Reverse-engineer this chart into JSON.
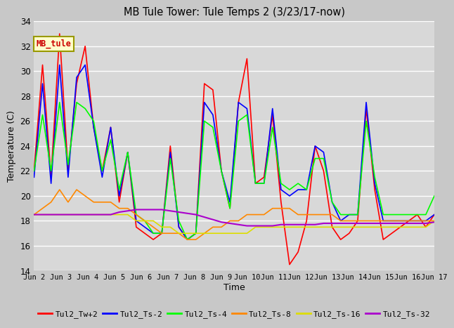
{
  "title": "MB Tule Tower: Tule Temps 2 (3/23/17-now)",
  "xlabel": "Time",
  "ylabel": "Temperature (C)",
  "ylim": [
    14,
    34
  ],
  "yticks": [
    14,
    16,
    18,
    20,
    22,
    24,
    26,
    28,
    30,
    32,
    34
  ],
  "x_labels": [
    "Jun 2",
    "Jun 3",
    "Jun 4",
    "Jun 5",
    "Jun 6",
    "Jun 7",
    "Jun 8",
    "Jun 9",
    "Jun 10",
    "Jun 11",
    "Jun 12",
    "Jun 13",
    "Jun 14",
    "Jun 15",
    "Jun 16",
    "Jun 17"
  ],
  "background_color": "#d8d8d8",
  "plot_bg_color": "#d8d8d8",
  "fig_bg_color": "#c8c8c8",
  "grid_color": "#ffffff",
  "legend_box": {
    "text": "MB_tule",
    "bg": "#ffffcc",
    "edge": "#999900",
    "text_color": "#cc0000"
  },
  "series_order": [
    "Tul2_Tw+2",
    "Tul2_Ts-2",
    "Tul2_Ts-4",
    "Tul2_Ts-8",
    "Tul2_Ts-16",
    "Tul2_Ts-32"
  ],
  "series": {
    "Tul2_Tw+2": {
      "color": "#ff0000",
      "lw": 1.2,
      "y": [
        22.0,
        30.5,
        21.5,
        33.0,
        22.0,
        29.0,
        32.0,
        25.5,
        22.0,
        25.5,
        19.5,
        23.5,
        17.5,
        17.0,
        16.5,
        17.0,
        24.0,
        17.5,
        16.5,
        17.0,
        29.0,
        28.5,
        22.0,
        19.0,
        27.5,
        31.0,
        21.0,
        21.5,
        26.5,
        19.5,
        14.5,
        15.5,
        18.0,
        24.0,
        22.0,
        17.5,
        16.5,
        17.0,
        18.0,
        27.0,
        20.5,
        16.5,
        17.0,
        17.5,
        18.0,
        18.5,
        17.5,
        18.5
      ]
    },
    "Tul2_Ts-2": {
      "color": "#0000ff",
      "lw": 1.2,
      "y": [
        21.5,
        29.0,
        21.0,
        30.5,
        21.5,
        29.5,
        30.5,
        25.5,
        21.5,
        25.5,
        20.0,
        23.5,
        18.0,
        17.5,
        17.0,
        17.0,
        23.5,
        17.5,
        16.5,
        17.0,
        27.5,
        26.5,
        22.0,
        19.5,
        27.5,
        27.0,
        21.0,
        21.0,
        27.0,
        20.5,
        20.0,
        20.5,
        20.5,
        24.0,
        23.5,
        19.5,
        18.0,
        18.5,
        18.5,
        27.5,
        21.0,
        18.0,
        18.0,
        18.0,
        18.0,
        18.0,
        18.0,
        18.5
      ]
    },
    "Tul2_Ts-4": {
      "color": "#00ff00",
      "lw": 1.2,
      "y": [
        22.0,
        26.5,
        22.0,
        27.5,
        22.5,
        27.5,
        27.0,
        26.0,
        22.0,
        24.5,
        20.5,
        23.5,
        18.5,
        18.0,
        17.0,
        17.0,
        23.0,
        18.0,
        16.5,
        17.0,
        26.0,
        25.5,
        22.0,
        19.0,
        26.0,
        26.5,
        21.0,
        21.0,
        25.5,
        21.0,
        20.5,
        21.0,
        20.5,
        23.0,
        23.0,
        19.5,
        18.5,
        18.5,
        18.5,
        26.0,
        21.5,
        18.5,
        18.5,
        18.5,
        18.5,
        18.5,
        18.5,
        20.0
      ]
    },
    "Tul2_Ts-8": {
      "color": "#ff8800",
      "lw": 1.2,
      "y": [
        18.5,
        19.0,
        19.5,
        20.5,
        19.5,
        20.5,
        20.0,
        19.5,
        19.5,
        19.5,
        19.0,
        19.0,
        18.5,
        18.0,
        17.5,
        17.0,
        17.0,
        17.0,
        16.5,
        16.5,
        17.0,
        17.5,
        17.5,
        18.0,
        18.0,
        18.5,
        18.5,
        18.5,
        19.0,
        19.0,
        19.0,
        18.5,
        18.5,
        18.5,
        18.5,
        18.5,
        18.0,
        18.0,
        18.0,
        18.0,
        18.0,
        18.0,
        18.0,
        18.0,
        18.0,
        18.0,
        18.0,
        18.0
      ]
    },
    "Tul2_Ts-16": {
      "color": "#dddd00",
      "lw": 1.2,
      "y": [
        18.5,
        18.5,
        18.5,
        18.5,
        18.5,
        18.5,
        18.5,
        18.5,
        18.5,
        18.5,
        18.5,
        18.5,
        18.0,
        18.0,
        18.0,
        17.5,
        17.5,
        17.0,
        17.0,
        17.0,
        17.0,
        17.0,
        17.0,
        17.0,
        17.0,
        17.0,
        17.5,
        17.5,
        17.5,
        17.5,
        17.5,
        17.5,
        17.5,
        17.5,
        17.5,
        17.5,
        17.5,
        17.5,
        17.5,
        17.5,
        17.5,
        17.5,
        17.5,
        17.5,
        17.5,
        17.5,
        17.5,
        18.0
      ]
    },
    "Tul2_Ts-32": {
      "color": "#aa00cc",
      "lw": 1.5,
      "y": [
        18.5,
        18.5,
        18.5,
        18.5,
        18.5,
        18.5,
        18.5,
        18.5,
        18.5,
        18.5,
        18.7,
        18.8,
        18.9,
        18.9,
        18.9,
        18.9,
        18.8,
        18.7,
        18.6,
        18.5,
        18.3,
        18.1,
        17.9,
        17.8,
        17.7,
        17.6,
        17.6,
        17.6,
        17.6,
        17.7,
        17.7,
        17.7,
        17.7,
        17.7,
        17.8,
        17.8,
        17.8,
        17.8,
        17.8,
        17.8,
        17.8,
        17.8,
        17.8,
        17.8,
        17.8,
        17.8,
        17.8,
        17.9
      ]
    }
  }
}
